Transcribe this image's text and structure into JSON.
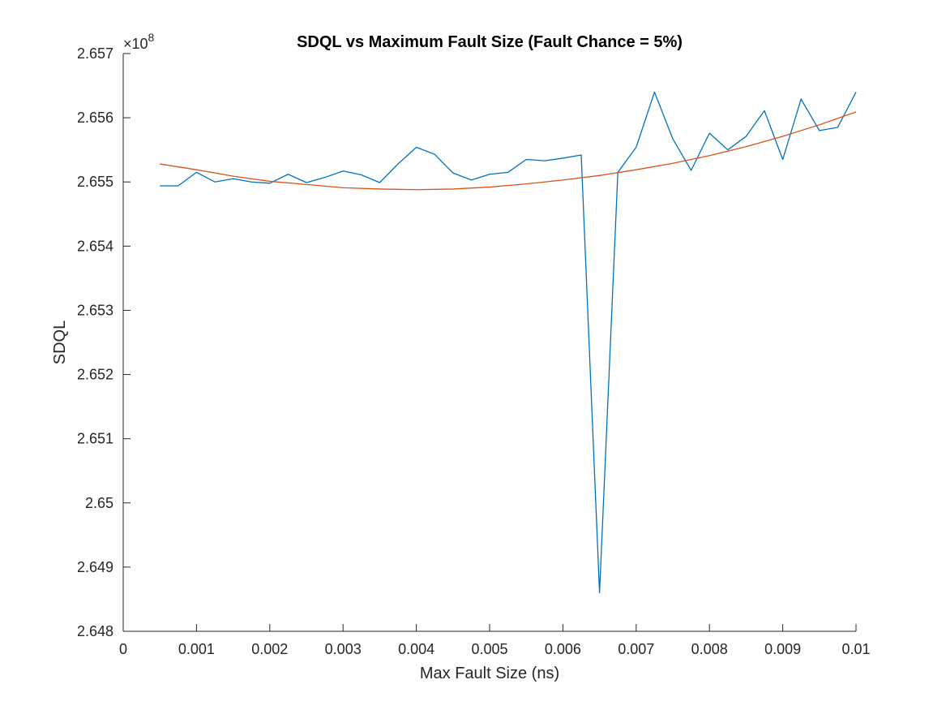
{
  "chart_data": {
    "type": "line",
    "title": "SDQL vs Maximum Fault Size (Fault Chance = 5%)",
    "xlabel": "Max Fault Size (ns)",
    "ylabel": "SDQL",
    "exponent_base": "×10",
    "exponent_power": "8",
    "xlim": [
      0,
      0.01
    ],
    "ylim": [
      2.648,
      2.657
    ],
    "x_ticks": [
      0,
      0.001,
      0.002,
      0.003,
      0.004,
      0.005,
      0.006,
      0.007,
      0.008,
      0.009,
      0.01
    ],
    "x_tick_labels": [
      "0",
      "0.001",
      "0.002",
      "0.003",
      "0.004",
      "0.005",
      "0.006",
      "0.007",
      "0.008",
      "0.009",
      "0.01"
    ],
    "y_ticks": [
      2.648,
      2.649,
      2.65,
      2.651,
      2.652,
      2.653,
      2.654,
      2.655,
      2.656,
      2.657
    ],
    "y_tick_labels": [
      "2.648",
      "2.649",
      "2.65",
      "2.651",
      "2.652",
      "2.653",
      "2.654",
      "2.655",
      "2.656",
      "2.657"
    ],
    "grid": false,
    "colors": {
      "data": "#0072bd",
      "fit": "#d95319"
    },
    "series": [
      {
        "x": [
          0.0005,
          0.00075,
          0.001,
          0.00125,
          0.0015,
          0.00175,
          0.002,
          0.00225,
          0.0025,
          0.00275,
          0.003,
          0.00325,
          0.0035,
          0.00375,
          0.004,
          0.00425,
          0.0045,
          0.00475,
          0.005,
          0.00525,
          0.0055,
          0.00575,
          0.006,
          0.00625,
          0.0065,
          0.00675,
          0.007,
          0.00725,
          0.0075,
          0.00775,
          0.008,
          0.00825,
          0.0085,
          0.00875,
          0.009,
          0.00925,
          0.0095,
          0.00975,
          0.01
        ],
        "values": [
          2.65494,
          2.65494,
          2.65515,
          2.655,
          2.65505,
          2.655,
          2.65498,
          2.65512,
          2.65499,
          2.65507,
          2.65517,
          2.65511,
          2.65499,
          2.65528,
          2.65554,
          2.65543,
          2.65514,
          2.65503,
          2.65512,
          2.65515,
          2.65535,
          2.65533,
          2.65537,
          2.65542,
          2.6486,
          2.65515,
          2.65554,
          2.6564,
          2.65567,
          2.65518,
          2.65576,
          2.6555,
          2.65571,
          2.65611,
          2.65535,
          2.65629,
          2.6558,
          2.65585,
          2.6564
        ]
      },
      {
        "x": [
          0.0005,
          0.001,
          0.0015,
          0.002,
          0.0025,
          0.003,
          0.0035,
          0.004,
          0.0045,
          0.005,
          0.0055,
          0.006,
          0.0065,
          0.007,
          0.0075,
          0.008,
          0.0085,
          0.009,
          0.0095,
          0.01
        ],
        "values": [
          2.65528,
          2.65519,
          2.65509,
          2.65501,
          2.65496,
          2.65491,
          2.65489,
          2.65488,
          2.65489,
          2.65492,
          2.65497,
          2.65503,
          2.6551,
          2.65519,
          2.65529,
          2.65541,
          2.65555,
          2.65571,
          2.65589,
          2.65609
        ]
      }
    ]
  }
}
